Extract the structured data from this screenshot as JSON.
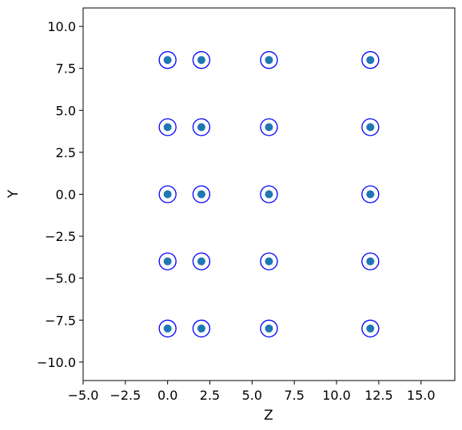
{
  "chart_data": {
    "type": "scatter",
    "xlabel": "Z",
    "ylabel": "Y",
    "xlim": [
      -5.0,
      17.0
    ],
    "ylim": [
      -11.1,
      11.1
    ],
    "grid": false,
    "x_ticks": [
      -5.0,
      -2.5,
      0.0,
      2.5,
      5.0,
      7.5,
      10.0,
      12.5,
      15.0
    ],
    "x_tick_labels": [
      "−5.0",
      "−2.5",
      "0.0",
      "2.5",
      "5.0",
      "7.5",
      "10.0",
      "12.5",
      "15.0"
    ],
    "y_ticks": [
      10.0,
      7.5,
      5.0,
      2.5,
      0.0,
      -2.5,
      -5.0,
      -7.5,
      -10.0
    ],
    "y_tick_labels": [
      "10.0",
      "7.5",
      "5.0",
      "2.5",
      "0.0",
      "−2.5",
      "−5.0",
      "−7.5",
      "−10.0"
    ],
    "series": [
      {
        "marker": "filled-dot",
        "color": "#1f77b4",
        "points": [
          [
            0,
            8
          ],
          [
            2,
            8
          ],
          [
            6,
            8
          ],
          [
            12,
            8
          ],
          [
            0,
            4
          ],
          [
            2,
            4
          ],
          [
            6,
            4
          ],
          [
            12,
            4
          ],
          [
            0,
            0
          ],
          [
            2,
            0
          ],
          [
            6,
            0
          ],
          [
            12,
            0
          ],
          [
            0,
            -4
          ],
          [
            2,
            -4
          ],
          [
            6,
            -4
          ],
          [
            12,
            -4
          ],
          [
            0,
            -8
          ],
          [
            2,
            -8
          ],
          [
            6,
            -8
          ],
          [
            12,
            -8
          ]
        ]
      },
      {
        "marker": "hollow-circle",
        "color": "#0000ff",
        "points": [
          [
            0,
            8
          ],
          [
            2,
            8
          ],
          [
            6,
            8
          ],
          [
            12,
            8
          ],
          [
            0,
            4
          ],
          [
            2,
            4
          ],
          [
            6,
            4
          ],
          [
            12,
            4
          ],
          [
            0,
            0
          ],
          [
            2,
            0
          ],
          [
            6,
            0
          ],
          [
            12,
            0
          ],
          [
            0,
            -4
          ],
          [
            2,
            -4
          ],
          [
            6,
            -4
          ],
          [
            12,
            -4
          ],
          [
            0,
            -8
          ],
          [
            2,
            -8
          ],
          [
            6,
            -8
          ],
          [
            12,
            -8
          ]
        ]
      }
    ]
  }
}
